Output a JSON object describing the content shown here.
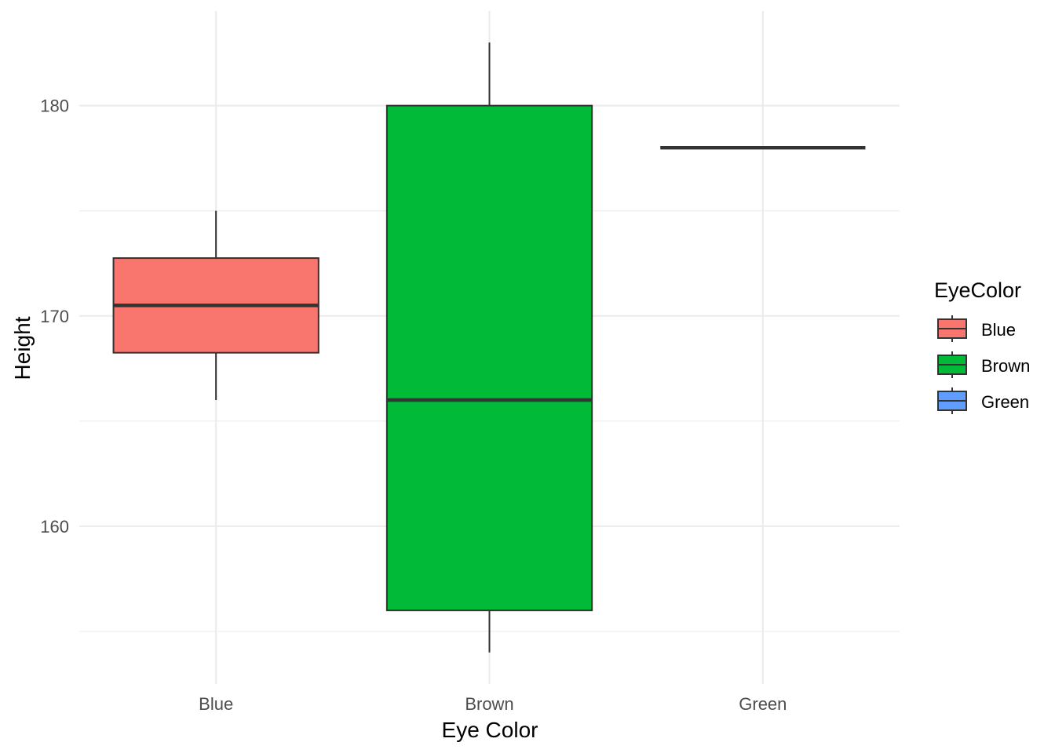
{
  "chart_data": {
    "type": "boxplot",
    "xlabel": "Eye Color",
    "ylabel": "Height",
    "ylim": [
      152.5,
      184.5
    ],
    "y_ticks": [
      160,
      170,
      180
    ],
    "grid": true,
    "legend_placement": "right",
    "categories": [
      "Blue",
      "Brown",
      "Green"
    ],
    "boxes": [
      {
        "category": "Blue",
        "min": 166,
        "q1": 168.25,
        "median": 170.5,
        "q3": 172.75,
        "max": 175,
        "fill": "#F8766D"
      },
      {
        "category": "Brown",
        "min": 154,
        "q1": 156,
        "median": 166,
        "q3": 180,
        "max": 183,
        "fill": "#00BA38"
      },
      {
        "category": "Green",
        "min": 178,
        "q1": 178,
        "median": 178,
        "q3": 178,
        "max": 178,
        "fill": "#619CFF"
      }
    ],
    "legend": {
      "title": "EyeColor",
      "entries": [
        {
          "label": "Blue",
          "color": "#F8766D"
        },
        {
          "label": "Brown",
          "color": "#00BA38"
        },
        {
          "label": "Green",
          "color": "#619CFF"
        }
      ]
    }
  }
}
